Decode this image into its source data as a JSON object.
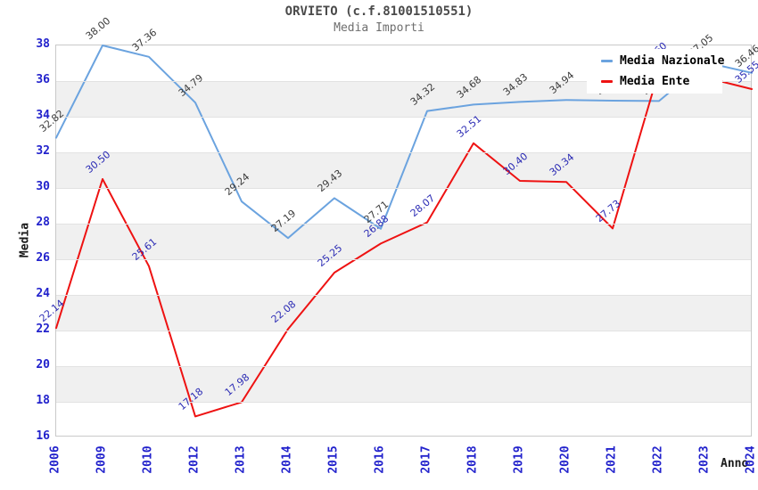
{
  "header": {
    "title": "ORVIETO (c.f.81001510551)",
    "subtitle": "Media Importi"
  },
  "chart_data": {
    "type": "line",
    "title": "ORVIETO (c.f.81001510551)",
    "subtitle": "Media Importi",
    "xlabel": "Anno",
    "ylabel": "Media",
    "categories": [
      "2006",
      "2009",
      "2010",
      "2012",
      "2013",
      "2014",
      "2015",
      "2016",
      "2017",
      "2018",
      "2019",
      "2020",
      "2021",
      "2022",
      "2023",
      "2024"
    ],
    "series": [
      {
        "name": "Media Nazionale",
        "color": "#6ba3df",
        "label_color": "#3a3a3a",
        "values": [
          32.82,
          38.0,
          37.36,
          34.79,
          29.24,
          27.19,
          29.43,
          27.71,
          34.32,
          34.68,
          34.83,
          34.94,
          34.9,
          34.88,
          37.05,
          36.46
        ]
      },
      {
        "name": "Media Ente",
        "color": "#ee1212",
        "label_color": "#2a2ab4",
        "values": [
          22.14,
          30.5,
          25.61,
          17.18,
          17.98,
          22.08,
          25.25,
          26.88,
          28.07,
          32.51,
          30.4,
          30.34,
          27.73,
          36.6,
          36.2,
          35.55
        ]
      }
    ],
    "ylim": [
      16,
      38
    ],
    "y_ticks": [
      16,
      18,
      20,
      22,
      24,
      26,
      28,
      30,
      32,
      34,
      36,
      38
    ],
    "grid": "horizontal gridlines with alternating gray bands",
    "legend_position": "top-right",
    "tick_label_color": "#2222cc",
    "notes": "labels for Media Nazionale 2021/2022 and Media Ente 2022/2023 are covered by the legend box"
  }
}
